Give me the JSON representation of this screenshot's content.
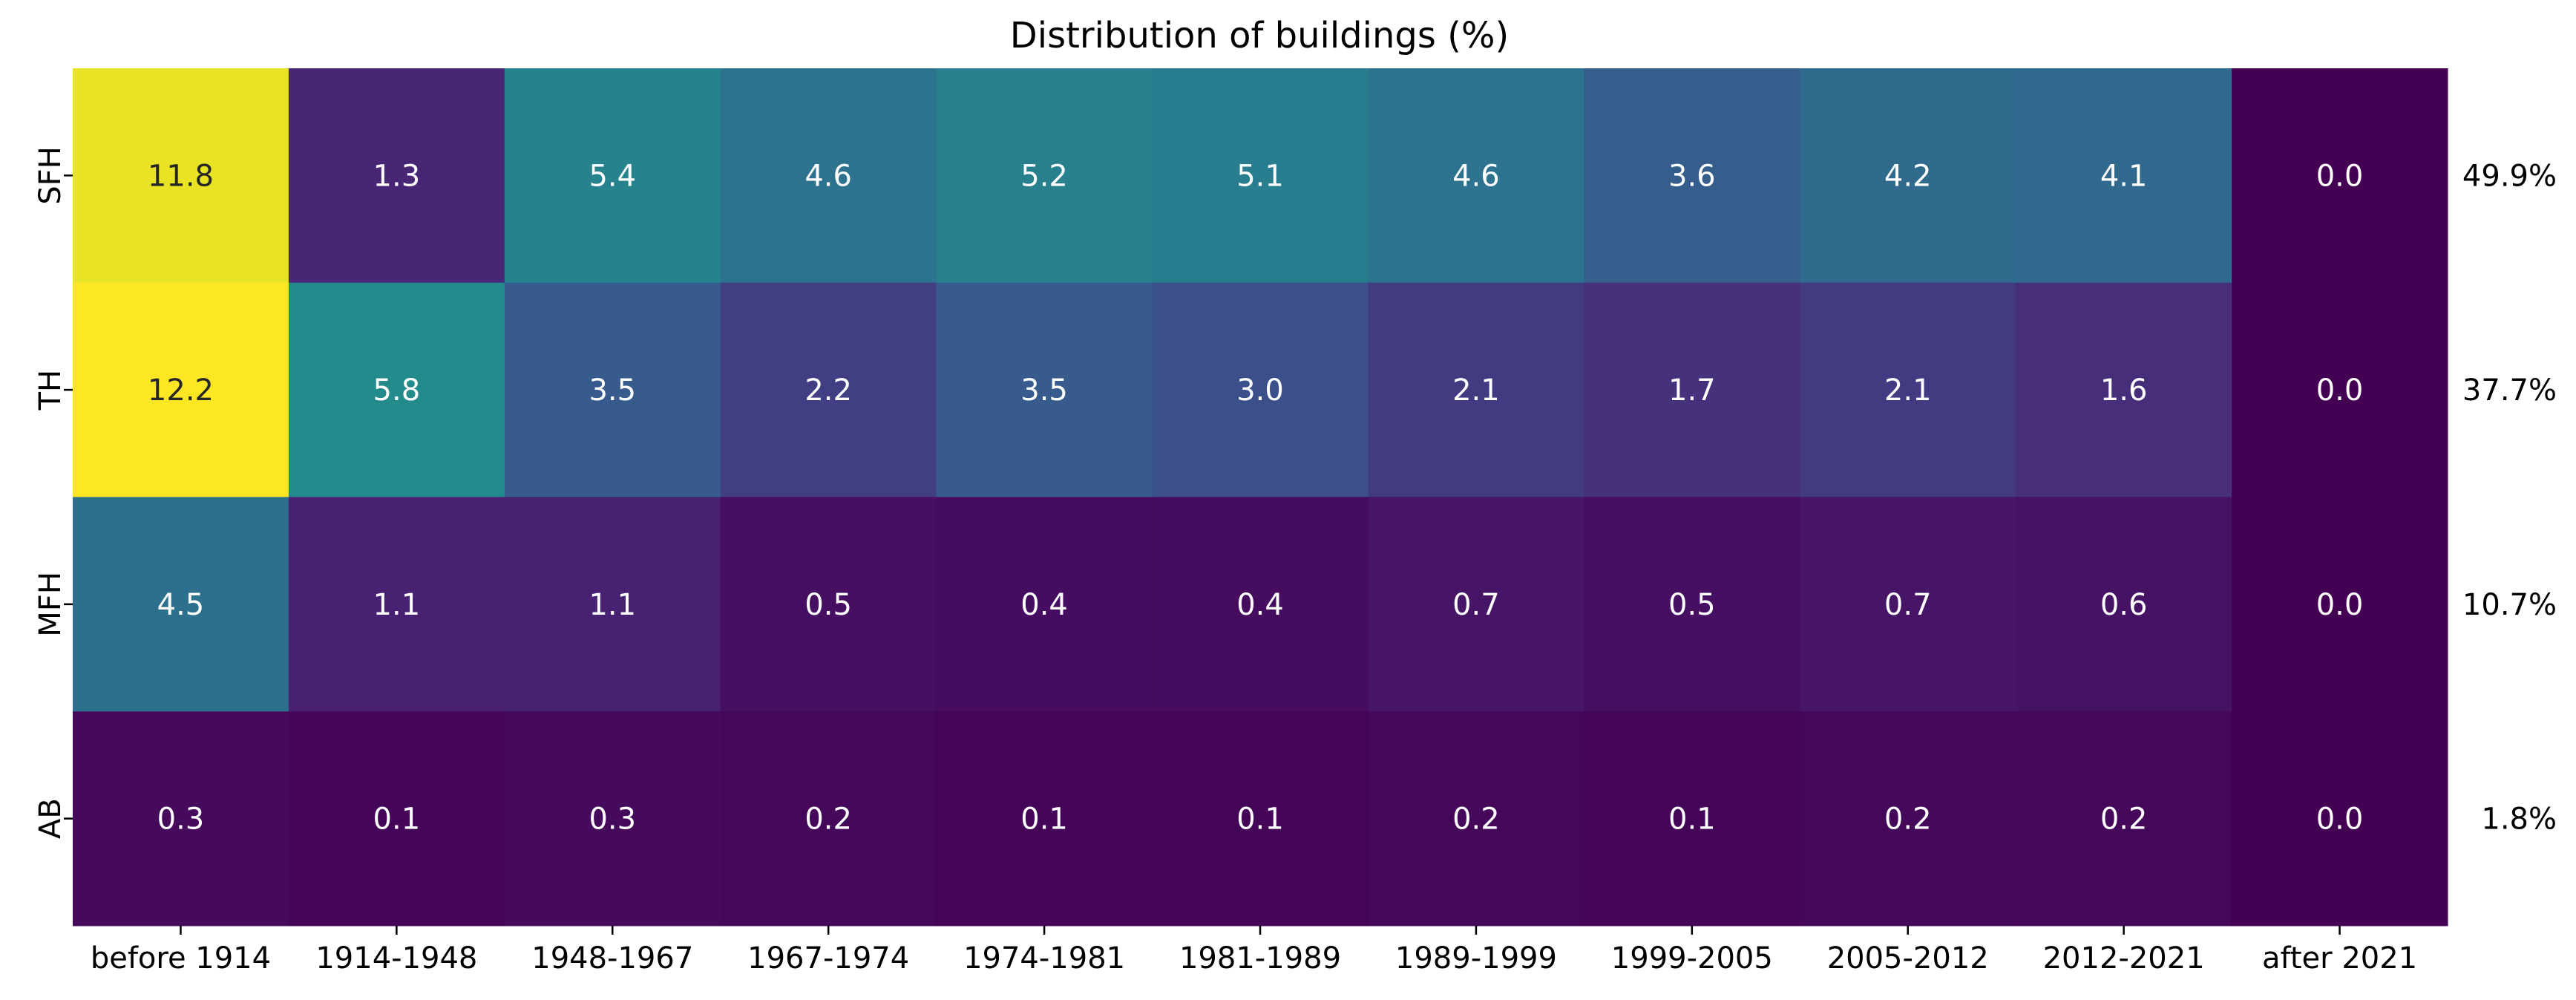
{
  "chart_data": {
    "type": "heatmap",
    "title": "Distribution of buildings (%)",
    "x_categories": [
      "before 1914",
      "1914-1948",
      "1948-1967",
      "1967-1974",
      "1974-1981",
      "1981-1989",
      "1989-1999",
      "1999-2005",
      "2005-2012",
      "2012-2021",
      "after 2021"
    ],
    "y_categories": [
      "SFH",
      "TH",
      "MFH",
      "AB"
    ],
    "values": [
      [
        11.8,
        1.3,
        5.4,
        4.6,
        5.2,
        5.1,
        4.6,
        3.6,
        4.2,
        4.1,
        0.0
      ],
      [
        12.2,
        5.8,
        3.5,
        2.2,
        3.5,
        3.0,
        2.1,
        1.7,
        2.1,
        1.6,
        0.0
      ],
      [
        4.5,
        1.1,
        1.1,
        0.5,
        0.4,
        0.4,
        0.7,
        0.5,
        0.7,
        0.6,
        0.0
      ],
      [
        0.3,
        0.1,
        0.3,
        0.2,
        0.1,
        0.1,
        0.2,
        0.1,
        0.2,
        0.2,
        0.0
      ]
    ],
    "row_totals": [
      "49.9%",
      "37.7%",
      "10.7%",
      "1.8%"
    ],
    "value_range": [
      0.0,
      12.2
    ],
    "colormap": "viridis",
    "text_color_light": "#ffffff",
    "text_color_dark": "#262626"
  }
}
